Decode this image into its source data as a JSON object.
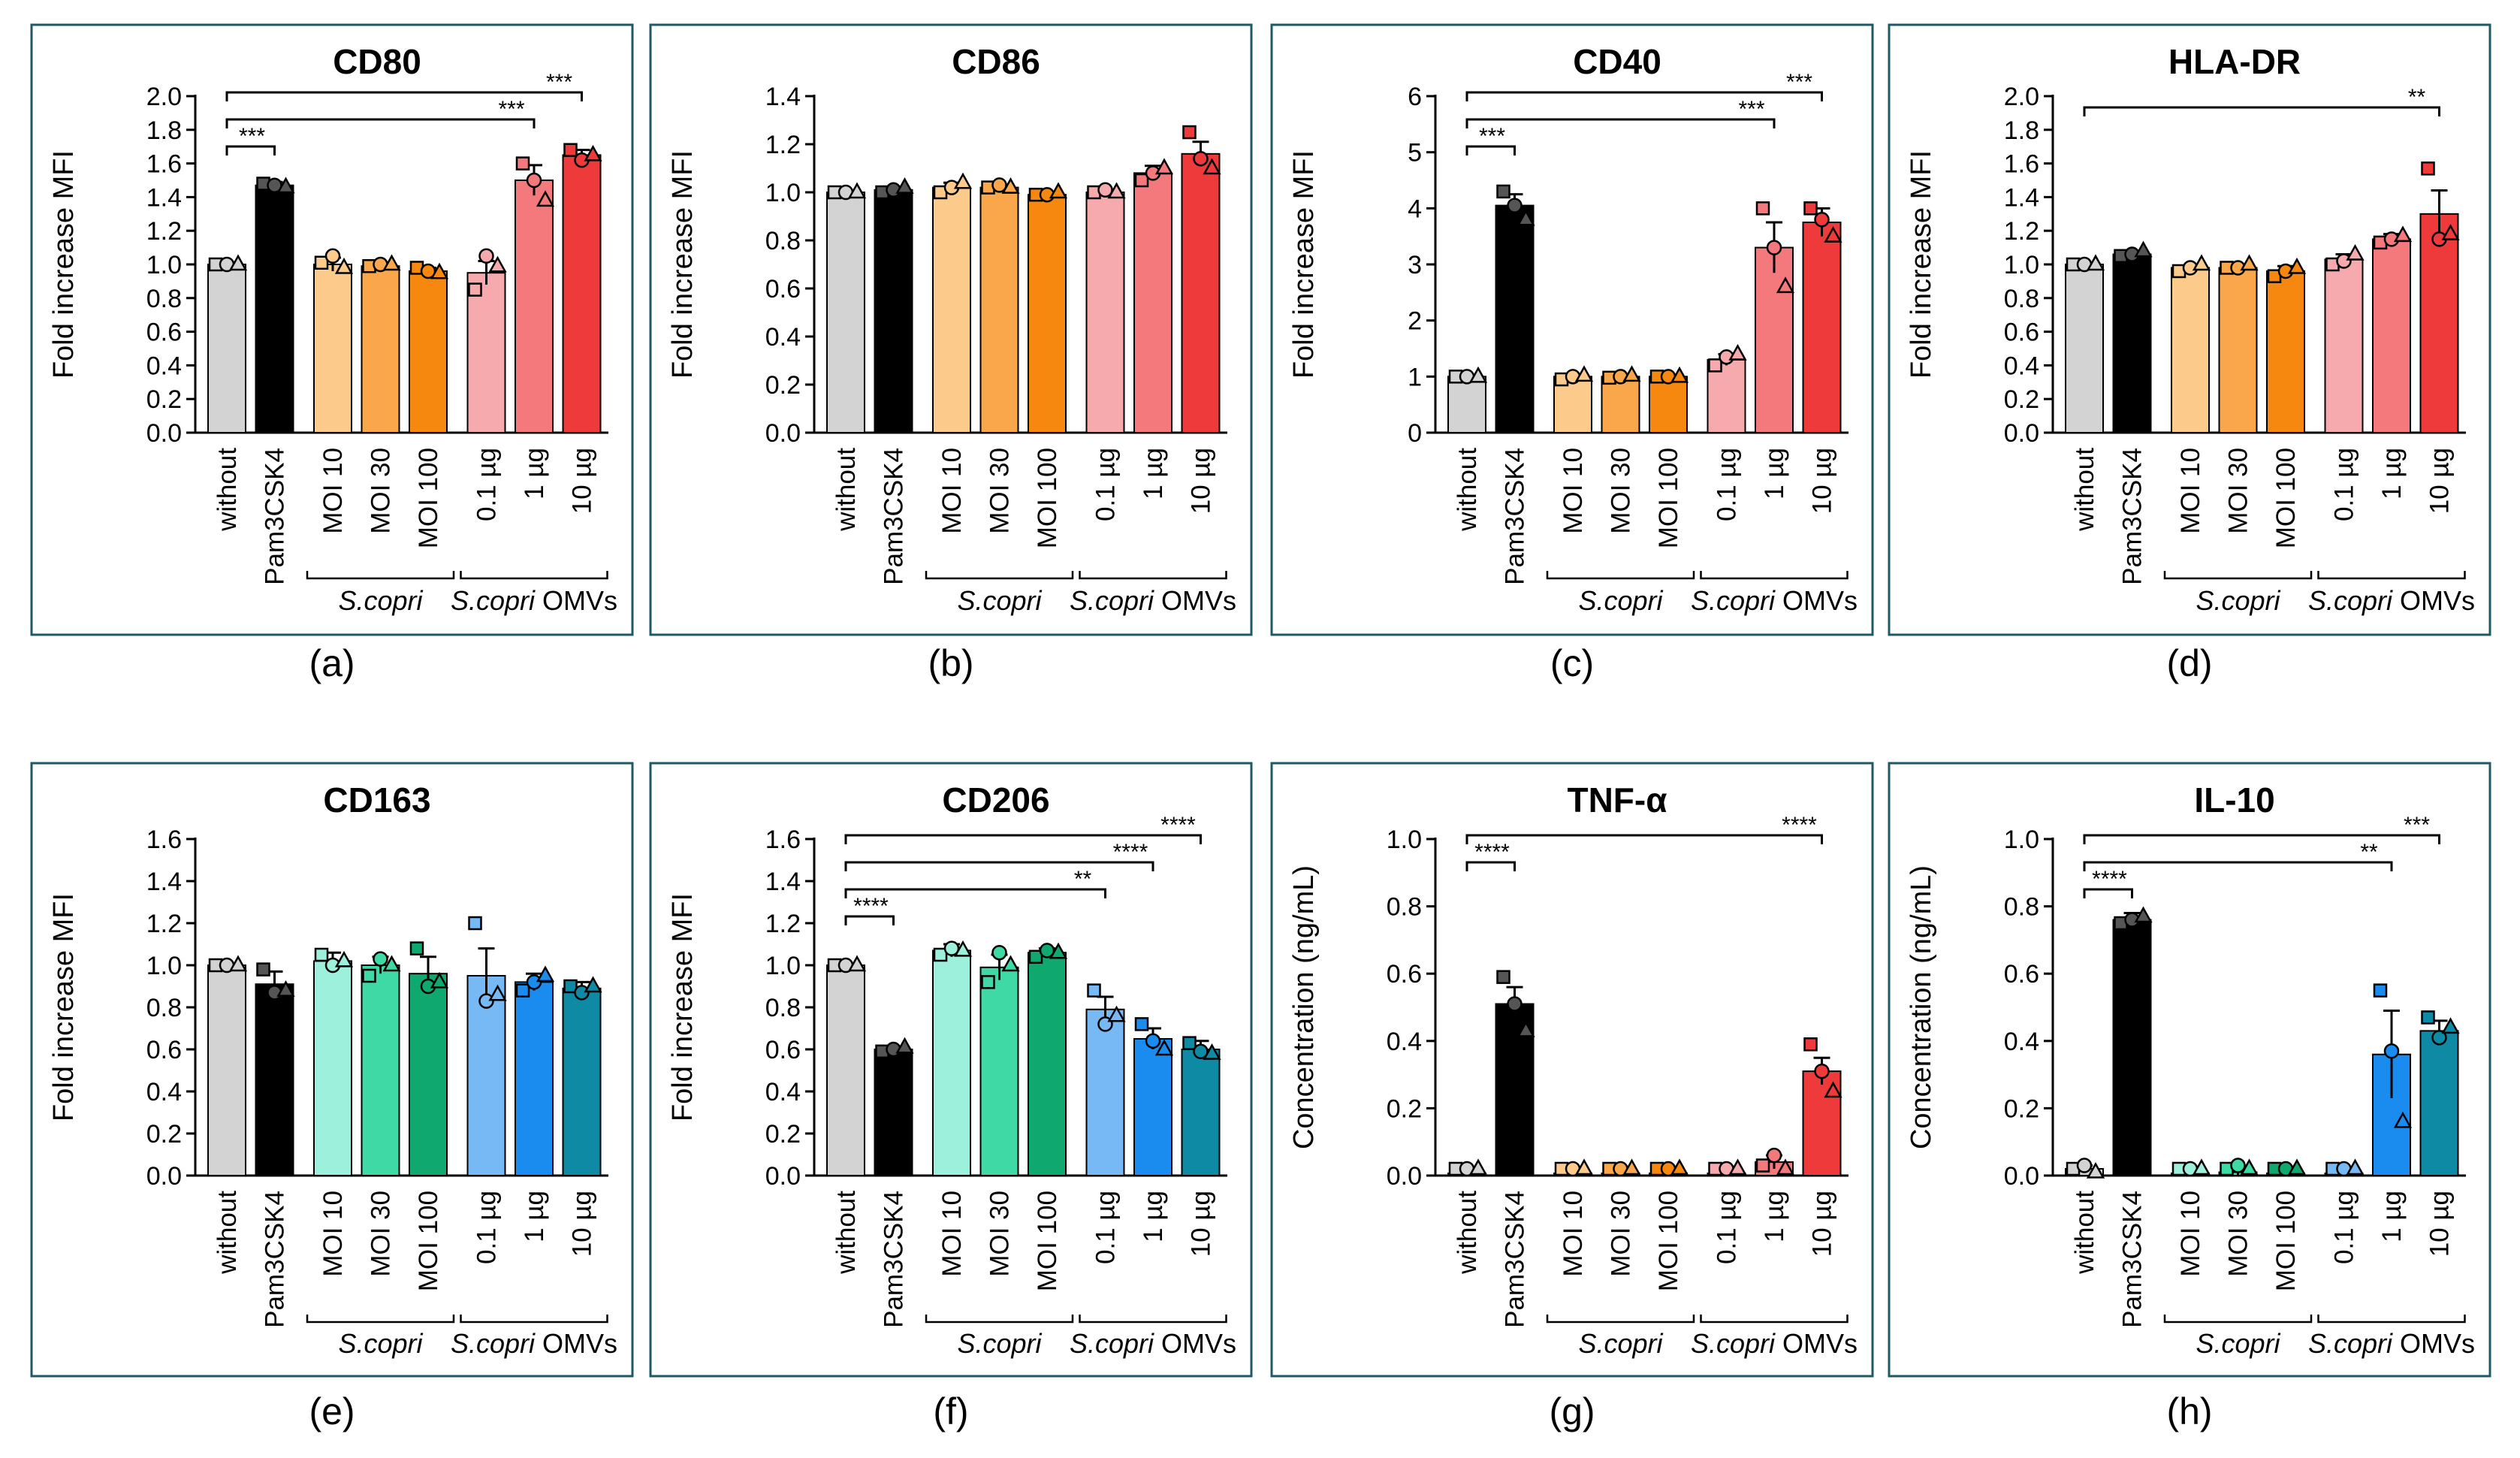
{
  "figure": {
    "categories": [
      "without",
      "Pam3CSK4",
      "MOI 10",
      "MOI 30",
      "MOI 100",
      "0.1 µg",
      "1 µg",
      "10 µg"
    ],
    "group_labels": [
      {
        "italic": "S.copri",
        "rest": ""
      },
      {
        "italic": "S.copri",
        "rest": " OMVs"
      }
    ],
    "fold_ylabel": "Fold increase MFI",
    "conc_ylabel": "Concentration (ng/mL)"
  },
  "chart_data": [
    {
      "type": "bar",
      "id": "a",
      "panel_label": "(a)",
      "title": "CD80",
      "ylabel_key": "fold",
      "ylim": [
        0,
        2.0
      ],
      "yticks": [
        0.0,
        0.2,
        0.4,
        0.6,
        0.8,
        1.0,
        1.2,
        1.4,
        1.6,
        1.8,
        2.0
      ],
      "tick_labels": [
        "0.0",
        "0.2",
        "0.4",
        "0.6",
        "0.8",
        "1.0",
        "1.2",
        "1.4",
        "1.6",
        "1.8",
        "2.0"
      ],
      "palette": "red",
      "values": [
        1.0,
        1.47,
        1.0,
        0.99,
        0.96,
        0.95,
        1.5,
        1.65
      ],
      "errors": [
        0.0,
        0.02,
        0.04,
        0.01,
        0.02,
        0.07,
        0.09,
        0.03
      ],
      "points": [
        [
          1.0,
          1.0,
          1.0
        ],
        [
          1.48,
          1.47,
          1.46
        ],
        [
          1.01,
          1.05,
          0.98
        ],
        [
          0.99,
          1.0,
          1.0
        ],
        [
          0.98,
          0.96,
          0.95
        ],
        [
          0.85,
          1.05,
          0.99
        ],
        [
          1.6,
          1.5,
          1.38
        ],
        [
          1.68,
          1.62,
          1.65
        ]
      ],
      "sig": [
        {
          "from": 0,
          "to": 1,
          "label": "***"
        },
        {
          "from": 0,
          "to": 6,
          "label": "***"
        },
        {
          "from": 0,
          "to": 7,
          "label": "***"
        }
      ]
    },
    {
      "type": "bar",
      "id": "b",
      "panel_label": "(b)",
      "title": "CD86",
      "ylabel_key": "fold",
      "ylim": [
        0,
        1.4
      ],
      "yticks": [
        0.0,
        0.2,
        0.4,
        0.6,
        0.8,
        1.0,
        1.2,
        1.4
      ],
      "tick_labels": [
        "0.0",
        "0.2",
        "0.4",
        "0.6",
        "0.8",
        "1.0",
        "1.2",
        "1.4"
      ],
      "palette": "red",
      "values": [
        1.0,
        1.01,
        1.02,
        1.02,
        0.99,
        1.0,
        1.08,
        1.16
      ],
      "errors": [
        0.0,
        0.01,
        0.02,
        0.01,
        0.01,
        0.01,
        0.03,
        0.05
      ],
      "points": [
        [
          1.0,
          1.0,
          1.0
        ],
        [
          1.0,
          1.01,
          1.02
        ],
        [
          1.0,
          1.02,
          1.04
        ],
        [
          1.02,
          1.03,
          1.02
        ],
        [
          0.99,
          0.99,
          1.0
        ],
        [
          1.0,
          1.01,
          1.0
        ],
        [
          1.05,
          1.08,
          1.1
        ],
        [
          1.25,
          1.14,
          1.1
        ]
      ],
      "sig": []
    },
    {
      "type": "bar",
      "id": "c",
      "panel_label": "(c)",
      "title": "CD40",
      "ylabel_key": "fold",
      "ylim": [
        0,
        6
      ],
      "yticks": [
        0,
        1,
        2,
        3,
        4,
        5,
        6
      ],
      "tick_labels": [
        "0",
        "1",
        "2",
        "3",
        "4",
        "5",
        "6"
      ],
      "palette": "red",
      "values": [
        1.0,
        4.05,
        1.0,
        1.0,
        1.0,
        1.3,
        3.3,
        3.75
      ],
      "errors": [
        0.0,
        0.2,
        0.03,
        0.03,
        0.02,
        0.1,
        0.45,
        0.25
      ],
      "points": [
        [
          1.0,
          1.0,
          1.0
        ],
        [
          4.3,
          4.05,
          3.8
        ],
        [
          0.95,
          1.0,
          1.02
        ],
        [
          0.98,
          1.0,
          1.02
        ],
        [
          1.0,
          1.0,
          1.0
        ],
        [
          1.2,
          1.35,
          1.4
        ],
        [
          4.0,
          3.3,
          2.6
        ],
        [
          4.0,
          3.8,
          3.5
        ]
      ],
      "sig": [
        {
          "from": 0,
          "to": 1,
          "label": "***"
        },
        {
          "from": 0,
          "to": 6,
          "label": "***"
        },
        {
          "from": 0,
          "to": 7,
          "label": "***"
        }
      ]
    },
    {
      "type": "bar",
      "id": "d",
      "panel_label": "(d)",
      "title": "HLA-DR",
      "ylabel_key": "fold",
      "ylim": [
        0,
        2.0
      ],
      "yticks": [
        0.0,
        0.2,
        0.4,
        0.6,
        0.8,
        1.0,
        1.2,
        1.4,
        1.6,
        1.8,
        2.0
      ],
      "tick_labels": [
        "0.0",
        "0.2",
        "0.4",
        "0.6",
        "0.8",
        "1.0",
        "1.2",
        "1.4",
        "1.6",
        "1.8",
        "2.0"
      ],
      "palette": "red",
      "values": [
        1.0,
        1.06,
        0.98,
        0.98,
        0.96,
        1.03,
        1.15,
        1.3
      ],
      "errors": [
        0.0,
        0.02,
        0.01,
        0.01,
        0.03,
        0.03,
        0.03,
        0.14
      ],
      "points": [
        [
          1.0,
          1.0,
          1.0
        ],
        [
          1.05,
          1.06,
          1.08
        ],
        [
          0.96,
          0.98,
          1.0
        ],
        [
          0.98,
          0.98,
          1.0
        ],
        [
          0.93,
          0.96,
          0.98
        ],
        [
          1.0,
          1.02,
          1.06
        ],
        [
          1.13,
          1.15,
          1.17
        ],
        [
          1.57,
          1.15,
          1.18
        ]
      ],
      "sig": [
        {
          "from": 0,
          "to": 7,
          "label": "**"
        }
      ]
    },
    {
      "type": "bar",
      "id": "e",
      "panel_label": "(e)",
      "title": "CD163",
      "ylabel_key": "fold",
      "ylim": [
        0,
        1.6
      ],
      "yticks": [
        0.0,
        0.2,
        0.4,
        0.6,
        0.8,
        1.0,
        1.2,
        1.4,
        1.6
      ],
      "tick_labels": [
        "0.0",
        "0.2",
        "0.4",
        "0.6",
        "0.8",
        "1.0",
        "1.2",
        "1.4",
        "1.6"
      ],
      "palette": "green-blue",
      "values": [
        1.0,
        0.91,
        1.02,
        1.0,
        0.96,
        0.95,
        0.92,
        0.89
      ],
      "errors": [
        0.0,
        0.06,
        0.04,
        0.04,
        0.08,
        0.13,
        0.04,
        0.03
      ],
      "points": [
        [
          1.0,
          1.0,
          1.0
        ],
        [
          0.98,
          0.87,
          0.88
        ],
        [
          1.05,
          1.0,
          1.02
        ],
        [
          0.95,
          1.03,
          1.0
        ],
        [
          1.08,
          0.9,
          0.92
        ],
        [
          1.2,
          0.83,
          0.86
        ],
        [
          0.88,
          0.92,
          0.95
        ],
        [
          0.9,
          0.87,
          0.9
        ]
      ],
      "sig": []
    },
    {
      "type": "bar",
      "id": "f",
      "panel_label": "(f)",
      "title": "CD206",
      "ylabel_key": "fold",
      "ylim": [
        0,
        1.6
      ],
      "yticks": [
        0.0,
        0.2,
        0.4,
        0.6,
        0.8,
        1.0,
        1.2,
        1.4,
        1.6
      ],
      "tick_labels": [
        "0.0",
        "0.2",
        "0.4",
        "0.6",
        "0.8",
        "1.0",
        "1.2",
        "1.4",
        "1.6"
      ],
      "palette": "green-blue",
      "values": [
        1.0,
        0.6,
        1.07,
        0.99,
        1.06,
        0.79,
        0.65,
        0.6
      ],
      "errors": [
        0.0,
        0.01,
        0.03,
        0.06,
        0.02,
        0.06,
        0.05,
        0.04
      ],
      "points": [
        [
          1.0,
          1.0,
          1.0
        ],
        [
          0.59,
          0.6,
          0.61
        ],
        [
          1.05,
          1.08,
          1.07
        ],
        [
          0.92,
          1.06,
          1.0
        ],
        [
          1.04,
          1.07,
          1.06
        ],
        [
          0.88,
          0.72,
          0.76
        ],
        [
          0.72,
          0.64,
          0.6
        ],
        [
          0.63,
          0.59,
          0.58
        ]
      ],
      "sig": [
        {
          "from": 0,
          "to": 1,
          "label": "****"
        },
        {
          "from": 0,
          "to": 5,
          "label": "**"
        },
        {
          "from": 0,
          "to": 6,
          "label": "****"
        },
        {
          "from": 0,
          "to": 7,
          "label": "****"
        }
      ]
    },
    {
      "type": "bar",
      "id": "g",
      "panel_label": "(g)",
      "title": "TNF-α",
      "ylabel_key": "conc",
      "ylim": [
        0,
        1.0
      ],
      "yticks": [
        0.0,
        0.2,
        0.4,
        0.6,
        0.8,
        1.0
      ],
      "tick_labels": [
        "0.0",
        "0.2",
        "0.4",
        "0.6",
        "0.8",
        "1.0"
      ],
      "palette": "red",
      "values": [
        0.0,
        0.51,
        0.0,
        0.0,
        0.0,
        0.0,
        0.04,
        0.31
      ],
      "errors": [
        0.0,
        0.05,
        0.0,
        0.0,
        0.0,
        0.0,
        0.02,
        0.04
      ],
      "points": [
        [
          0.0,
          0.0,
          0.0
        ],
        [
          0.59,
          0.51,
          0.43
        ],
        [
          0.0,
          0.0,
          0.0
        ],
        [
          0.0,
          0.0,
          0.0
        ],
        [
          0.0,
          0.0,
          0.0
        ],
        [
          0.0,
          0.0,
          0.0
        ],
        [
          0.03,
          0.06,
          0.02
        ],
        [
          0.39,
          0.31,
          0.25
        ]
      ],
      "sig": [
        {
          "from": 0,
          "to": 1,
          "label": "****"
        },
        {
          "from": 0,
          "to": 7,
          "label": "****"
        }
      ]
    },
    {
      "type": "bar",
      "id": "h",
      "panel_label": "(h)",
      "title": "IL-10",
      "ylabel_key": "conc",
      "ylim": [
        0,
        1.0
      ],
      "yticks": [
        0.0,
        0.2,
        0.4,
        0.6,
        0.8,
        1.0
      ],
      "tick_labels": [
        "0.0",
        "0.2",
        "0.4",
        "0.6",
        "0.8",
        "1.0"
      ],
      "palette": "green-blue",
      "values": [
        0.02,
        0.76,
        0.0,
        0.01,
        0.0,
        0.0,
        0.36,
        0.43
      ],
      "errors": [
        0.01,
        0.02,
        0.0,
        0.01,
        0.0,
        0.0,
        0.13,
        0.03
      ],
      "points": [
        [
          0.02,
          0.03,
          0.01
        ],
        [
          0.75,
          0.76,
          0.77
        ],
        [
          0.0,
          0.0,
          0.0
        ],
        [
          0.0,
          0.03,
          0.0
        ],
        [
          0.0,
          0.0,
          0.0
        ],
        [
          0.0,
          0.0,
          0.0
        ],
        [
          0.55,
          0.37,
          0.16
        ],
        [
          0.47,
          0.41,
          0.44
        ]
      ],
      "sig": [
        {
          "from": 0,
          "to": 1,
          "label": "****"
        },
        {
          "from": 0,
          "to": 6,
          "label": "**"
        },
        {
          "from": 0,
          "to": 7,
          "label": "***"
        }
      ]
    }
  ],
  "colors": {
    "frame": "#1e5a66",
    "red": [
      "#d3d3d3",
      "#000000",
      "#fccb8c",
      "#faa64a",
      "#f7880f",
      "#f7aaad",
      "#f3797c",
      "#ee3a3b"
    ],
    "green-blue": [
      "#d3d3d3",
      "#000000",
      "#9cf0dc",
      "#3fd9a6",
      "#0fa86e",
      "#76b9f5",
      "#1a8cf0",
      "#0f8aa5"
    ]
  }
}
